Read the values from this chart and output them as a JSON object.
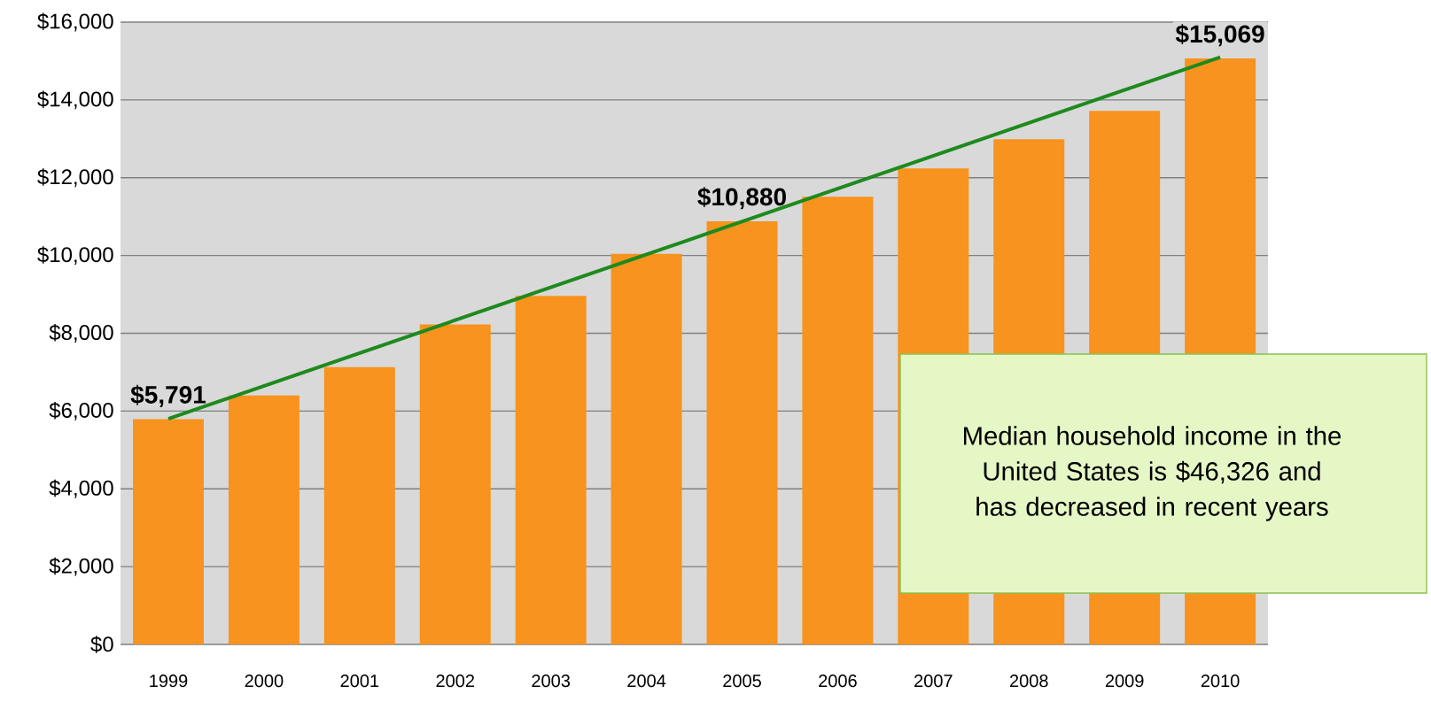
{
  "chart_data": {
    "type": "bar",
    "categories": [
      "1999",
      "2000",
      "2001",
      "2002",
      "2003",
      "2004",
      "2005",
      "2006",
      "2007",
      "2008",
      "2009",
      "2010"
    ],
    "series": [
      {
        "color": "#f7931e",
        "values": [
          5791,
          6400,
          7130,
          8230,
          8960,
          10040,
          10880,
          11510,
          12240,
          12990,
          13720,
          15069
        ],
        "value_labels": [
          "$5,791",
          null,
          null,
          null,
          null,
          null,
          "$10,880",
          null,
          null,
          null,
          null,
          "$15,069"
        ]
      },
      {
        "type": "line",
        "color": "#1e8a1e",
        "values": [
          5800,
          null,
          null,
          null,
          null,
          null,
          null,
          null,
          null,
          null,
          null,
          15100
        ]
      }
    ],
    "ylim": [
      0,
      16000
    ],
    "yticks": [
      {
        "value": 0,
        "label": "$0"
      },
      {
        "value": 2000,
        "label": "$2,000"
      },
      {
        "value": 4000,
        "label": "$4,000"
      },
      {
        "value": 6000,
        "label": "$6,000"
      },
      {
        "value": 8000,
        "label": "$8,000"
      },
      {
        "value": 10000,
        "label": "$10,000"
      },
      {
        "value": 12000,
        "label": "$12,000"
      },
      {
        "value": 14000,
        "label": "$14,000"
      },
      {
        "value": 16000,
        "label": "$16,000"
      }
    ],
    "grid": "y",
    "annotations": [
      "Median household income in the United States is $46,326 and has decreased in recent years"
    ]
  }
}
